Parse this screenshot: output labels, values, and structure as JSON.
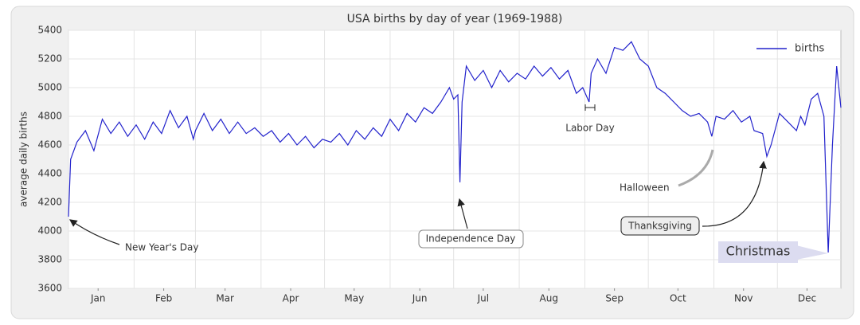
{
  "chart_data": {
    "type": "line",
    "title": "USA births by day of year (1969-1988)",
    "ylabel": "average daily births",
    "x": [
      1,
      2,
      5,
      9,
      13,
      17,
      21,
      25,
      29,
      33,
      37,
      41,
      45,
      49,
      53,
      57,
      60,
      61,
      65,
      69,
      73,
      77,
      81,
      85,
      89,
      93,
      97,
      101,
      105,
      109,
      113,
      117,
      121,
      125,
      129,
      133,
      137,
      141,
      145,
      149,
      153,
      157,
      161,
      165,
      169,
      173,
      177,
      181,
      183,
      185,
      186,
      187,
      189,
      193,
      197,
      201,
      205,
      209,
      213,
      217,
      221,
      225,
      229,
      233,
      237,
      241,
      244,
      247,
      248,
      251,
      255,
      259,
      263,
      267,
      271,
      275,
      279,
      283,
      287,
      291,
      295,
      299,
      303,
      305,
      307,
      311,
      315,
      319,
      323,
      325,
      329,
      331,
      333,
      337,
      341,
      345,
      347,
      349,
      352,
      355,
      358,
      360,
      362,
      364,
      366
    ],
    "series": [
      {
        "name": "births",
        "color": "#2222cc",
        "values": [
          4100,
          4500,
          4620,
          4700,
          4560,
          4780,
          4680,
          4760,
          4660,
          4740,
          4640,
          4760,
          4680,
          4840,
          4720,
          4800,
          4640,
          4700,
          4820,
          4700,
          4780,
          4680,
          4760,
          4680,
          4720,
          4660,
          4700,
          4620,
          4680,
          4600,
          4660,
          4580,
          4640,
          4620,
          4680,
          4600,
          4700,
          4640,
          4720,
          4660,
          4780,
          4700,
          4820,
          4760,
          4860,
          4820,
          4900,
          5000,
          4920,
          4950,
          4340,
          4900,
          5150,
          5050,
          5120,
          5000,
          5120,
          5040,
          5100,
          5060,
          5150,
          5080,
          5140,
          5060,
          5120,
          4960,
          5000,
          4900,
          5100,
          5200,
          5100,
          5280,
          5260,
          5320,
          5200,
          5150,
          5000,
          4960,
          4900,
          4840,
          4800,
          4820,
          4760,
          4660,
          4800,
          4780,
          4840,
          4760,
          4800,
          4700,
          4680,
          4520,
          4600,
          4820,
          4760,
          4700,
          4800,
          4740,
          4920,
          4960,
          4800,
          3850,
          4600,
          5150,
          4860
        ]
      }
    ],
    "xlim": [
      1,
      366
    ],
    "xticks": [
      {
        "value": 15,
        "label": "Jan"
      },
      {
        "value": 46,
        "label": "Feb"
      },
      {
        "value": 75,
        "label": "Mar"
      },
      {
        "value": 106,
        "label": "Apr"
      },
      {
        "value": 136,
        "label": "May"
      },
      {
        "value": 167,
        "label": "Jun"
      },
      {
        "value": 197,
        "label": "Jul"
      },
      {
        "value": 228,
        "label": "Aug"
      },
      {
        "value": 259,
        "label": "Sep"
      },
      {
        "value": 289,
        "label": "Oct"
      },
      {
        "value": 320,
        "label": "Nov"
      },
      {
        "value": 350,
        "label": "Dec"
      }
    ],
    "xminor": [
      1,
      32,
      61,
      92,
      122,
      153,
      183,
      214,
      245,
      275,
      306,
      336
    ],
    "ylim": [
      3600,
      5400
    ],
    "yticks": [
      3600,
      3800,
      4000,
      4200,
      4400,
      4600,
      4800,
      5000,
      5200,
      5400
    ],
    "grid": true,
    "legend": "upper right",
    "annotations": [
      "New Year's Day",
      "Independence Day",
      "Labor Day",
      "Halloween",
      "Thanksgiving",
      "Christmas"
    ]
  }
}
